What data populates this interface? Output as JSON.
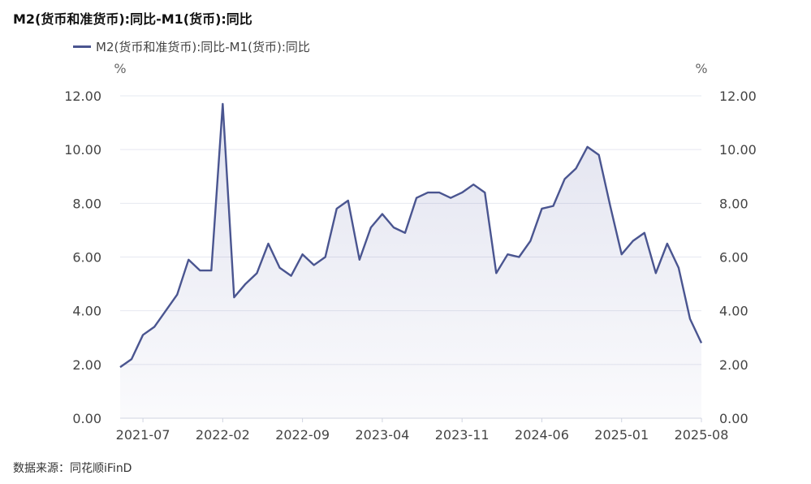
{
  "title": "M2(货币和准货币):同比-M1(货币):同比",
  "legend": {
    "label": "M2(货币和准货币):同比-M1(货币):同比",
    "color": "#4a5590"
  },
  "source": "数据来源：同花顺iFinD",
  "chart_data": {
    "type": "area",
    "title": "M2(货币和准货币):同比-M1(货币):同比",
    "y_unit_left": "%",
    "y_unit_right": "%",
    "ylim": [
      0,
      12
    ],
    "yticks": [
      "0.00",
      "2.00",
      "4.00",
      "6.00",
      "8.00",
      "10.00",
      "12.00"
    ],
    "xticks": [
      "2021-07",
      "2022-02",
      "2022-09",
      "2023-04",
      "2023-11",
      "2024-06",
      "2025-01",
      "2025-08"
    ],
    "grid": true,
    "legend_position": "top-left",
    "series": [
      {
        "name": "M2(货币和准货币):同比-M1(货币):同比",
        "x": [
          "2021-05",
          "2021-06",
          "2021-07",
          "2021-08",
          "2021-09",
          "2021-10",
          "2021-11",
          "2021-12",
          "2022-01",
          "2022-02",
          "2022-03",
          "2022-04",
          "2022-05",
          "2022-06",
          "2022-07",
          "2022-08",
          "2022-09",
          "2022-10",
          "2022-11",
          "2022-12",
          "2023-01",
          "2023-02",
          "2023-03",
          "2023-04",
          "2023-05",
          "2023-06",
          "2023-07",
          "2023-08",
          "2023-09",
          "2023-10",
          "2023-11",
          "2023-12",
          "2024-01",
          "2024-02",
          "2024-03",
          "2024-04",
          "2024-05",
          "2024-06",
          "2024-07",
          "2024-08",
          "2024-09",
          "2024-10",
          "2024-11",
          "2024-12",
          "2025-01",
          "2025-02",
          "2025-03",
          "2025-04",
          "2025-05",
          "2025-06",
          "2025-07",
          "2025-08"
        ],
        "values": [
          1.9,
          2.2,
          3.1,
          3.4,
          4.0,
          4.6,
          5.9,
          5.5,
          5.5,
          11.7,
          4.5,
          5.0,
          5.4,
          6.5,
          5.6,
          5.3,
          6.1,
          5.7,
          6.0,
          7.8,
          8.1,
          5.9,
          7.1,
          7.6,
          7.1,
          6.9,
          8.2,
          8.4,
          8.4,
          8.2,
          8.4,
          8.7,
          8.4,
          5.4,
          6.1,
          6.0,
          6.6,
          7.8,
          7.9,
          8.9,
          9.3,
          10.1,
          9.8,
          7.9,
          6.1,
          6.6,
          6.9,
          5.4,
          6.5,
          5.6,
          3.7,
          2.8
        ]
      }
    ]
  }
}
